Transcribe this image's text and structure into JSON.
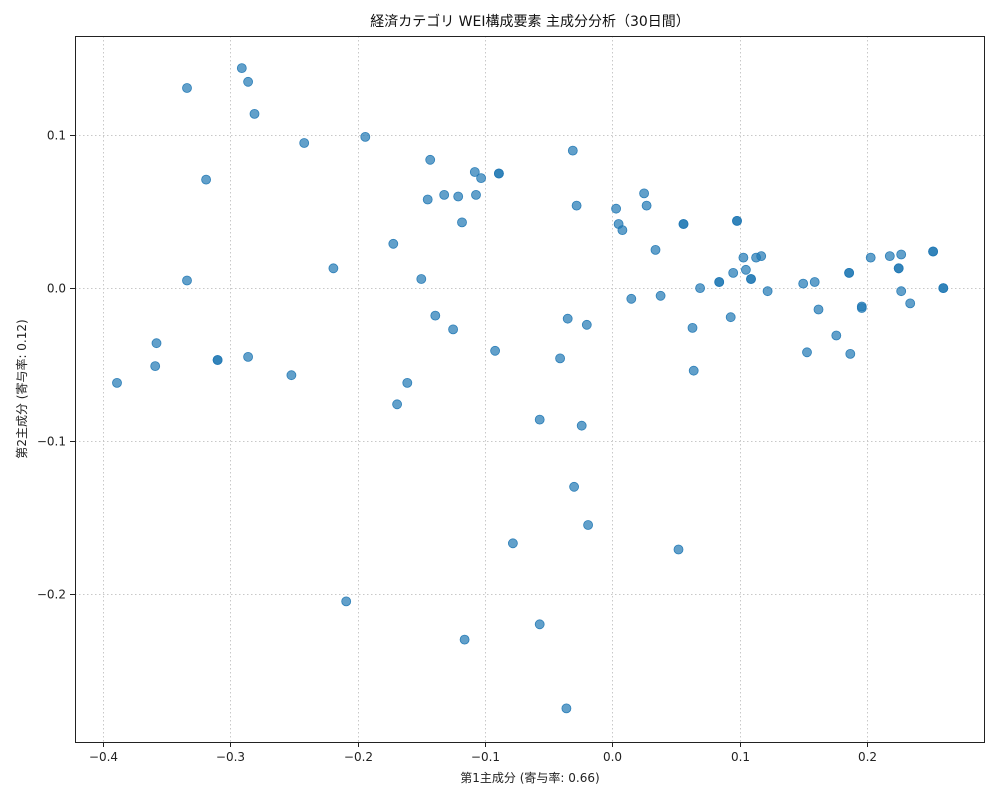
{
  "chart_data": {
    "type": "scatter",
    "title": "経済カテゴリ WEI構成要素 主成分分析（30日間）",
    "xlabel": "第1主成分 (寄与率: 0.66)",
    "ylabel": "第2主成分 (寄与率: 0.12)",
    "xlim": [
      -0.422,
      0.292
    ],
    "ylim": [
      -0.297,
      0.165
    ],
    "xticks": [
      -0.4,
      -0.3,
      -0.2,
      -0.1,
      0.0,
      0.1,
      0.2
    ],
    "xtick_labels": [
      "−0.4",
      "−0.3",
      "−0.2",
      "−0.1",
      "0.0",
      "0.1",
      "0.2"
    ],
    "yticks": [
      -0.2,
      -0.1,
      0.0,
      0.1
    ],
    "ytick_labels": [
      "−0.2",
      "−0.1",
      "0.0",
      "0.1"
    ],
    "grid": true,
    "marker_color": "#1f77b4",
    "marker_alpha": 0.7,
    "points": [
      [
        -0.291,
        0.144
      ],
      [
        -0.286,
        0.135
      ],
      [
        -0.334,
        0.131
      ],
      [
        -0.281,
        0.114
      ],
      [
        -0.194,
        0.099
      ],
      [
        -0.242,
        0.095
      ],
      [
        -0.319,
        0.071
      ],
      [
        -0.031,
        0.09
      ],
      [
        -0.143,
        0.084
      ],
      [
        -0.108,
        0.076
      ],
      [
        -0.089,
        0.075
      ],
      [
        -0.089,
        0.075
      ],
      [
        -0.103,
        0.072
      ],
      [
        -0.132,
        0.061
      ],
      [
        -0.121,
        0.06
      ],
      [
        -0.107,
        0.061
      ],
      [
        -0.145,
        0.058
      ],
      [
        0.025,
        0.062
      ],
      [
        -0.028,
        0.054
      ],
      [
        0.027,
        0.054
      ],
      [
        0.003,
        0.052
      ],
      [
        0.098,
        0.044
      ],
      [
        0.098,
        0.044
      ],
      [
        0.056,
        0.042
      ],
      [
        0.056,
        0.042
      ],
      [
        0.005,
        0.042
      ],
      [
        -0.118,
        0.043
      ],
      [
        0.008,
        0.038
      ],
      [
        -0.172,
        0.029
      ],
      [
        0.034,
        0.025
      ],
      [
        0.252,
        0.024
      ],
      [
        0.252,
        0.024
      ],
      [
        0.227,
        0.022
      ],
      [
        0.218,
        0.021
      ],
      [
        0.117,
        0.021
      ],
      [
        0.113,
        0.02
      ],
      [
        0.103,
        0.02
      ],
      [
        0.203,
        0.02
      ],
      [
        -0.219,
        0.013
      ],
      [
        0.225,
        0.013
      ],
      [
        0.225,
        0.013
      ],
      [
        0.105,
        0.012
      ],
      [
        0.095,
        0.01
      ],
      [
        0.186,
        0.01
      ],
      [
        0.186,
        0.01
      ],
      [
        -0.15,
        0.006
      ],
      [
        0.109,
        0.006
      ],
      [
        0.109,
        0.006
      ],
      [
        -0.334,
        0.005
      ],
      [
        0.084,
        0.004
      ],
      [
        0.084,
        0.004
      ],
      [
        0.15,
        0.003
      ],
      [
        0.159,
        0.004
      ],
      [
        0.26,
        0.0
      ],
      [
        0.26,
        0.0
      ],
      [
        0.069,
        0.0
      ],
      [
        0.227,
        -0.002
      ],
      [
        0.122,
        -0.002
      ],
      [
        0.038,
        -0.005
      ],
      [
        0.015,
        -0.007
      ],
      [
        0.196,
        -0.012
      ],
      [
        0.234,
        -0.01
      ],
      [
        0.196,
        -0.013
      ],
      [
        0.162,
        -0.014
      ],
      [
        -0.139,
        -0.018
      ],
      [
        -0.035,
        -0.02
      ],
      [
        0.093,
        -0.019
      ],
      [
        -0.02,
        -0.024
      ],
      [
        -0.125,
        -0.027
      ],
      [
        0.063,
        -0.026
      ],
      [
        0.176,
        -0.031
      ],
      [
        -0.358,
        -0.036
      ],
      [
        -0.092,
        -0.041
      ],
      [
        0.153,
        -0.042
      ],
      [
        0.187,
        -0.043
      ],
      [
        -0.286,
        -0.045
      ],
      [
        -0.041,
        -0.046
      ],
      [
        -0.31,
        -0.047
      ],
      [
        -0.31,
        -0.047
      ],
      [
        -0.359,
        -0.051
      ],
      [
        0.064,
        -0.054
      ],
      [
        -0.252,
        -0.057
      ],
      [
        -0.161,
        -0.062
      ],
      [
        -0.389,
        -0.062
      ],
      [
        -0.169,
        -0.076
      ],
      [
        -0.057,
        -0.086
      ],
      [
        -0.024,
        -0.09
      ],
      [
        -0.03,
        -0.13
      ],
      [
        -0.019,
        -0.155
      ],
      [
        -0.078,
        -0.167
      ],
      [
        0.052,
        -0.171
      ],
      [
        -0.209,
        -0.205
      ],
      [
        -0.116,
        -0.23
      ],
      [
        -0.057,
        -0.22
      ],
      [
        -0.036,
        -0.275
      ]
    ]
  }
}
